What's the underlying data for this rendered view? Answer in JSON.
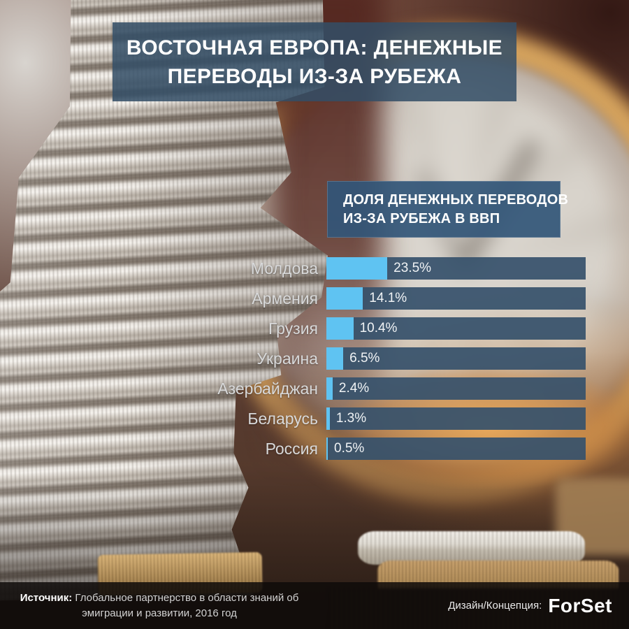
{
  "title_lines": [
    "ВОСТОЧНАЯ ЕВРОПА: ДЕНЕЖНЫЕ",
    "ПЕРЕВОДЫ ИЗ-ЗА РУБЕЖА"
  ],
  "chart_header_lines": [
    "ДОЛЯ ДЕНЕЖНЫХ ПЕРЕВОДОВ",
    "ИЗ-ЗА РУБЕЖА В ВВП"
  ],
  "chart_data": {
    "type": "bar",
    "orientation": "horizontal",
    "title": "ДОЛЯ ДЕНЕЖНЫХ ПЕРЕВОДОВ ИЗ-ЗА РУБЕЖА В ВВП",
    "categories": [
      "Молдова",
      "Армения",
      "Грузия",
      "Украина",
      "Азербайджан",
      "Беларусь",
      "Россия"
    ],
    "values": [
      23.5,
      14.1,
      10.4,
      6.5,
      2.4,
      1.3,
      0.5
    ],
    "unit": "%",
    "xlim": [
      0,
      100
    ],
    "grid": false,
    "legend": false,
    "value_labels_inside_track": true
  },
  "footer": {
    "source_label": "Источник:",
    "source_line1": "Глобальное партнерство в области знаний об",
    "source_line2": "эмиграции и развитии, 2016 год",
    "credit_label": "Дизайн/Концепция:",
    "credit_brand": "ForSet"
  },
  "theme": {
    "title_panel": "rgba(51,78,103,0.86)",
    "header_panel": "rgba(50,86,120,0.92)",
    "bar_track": "rgba(55,82,108,0.93)",
    "bar_fill": "#5fc3f2",
    "label_text": "#d8d9da",
    "value_text": "#f0f3f5",
    "footer_bg": "rgba(14,11,9,0.85)",
    "footer_text": "#d2d2d2",
    "white": "#ffffff"
  }
}
